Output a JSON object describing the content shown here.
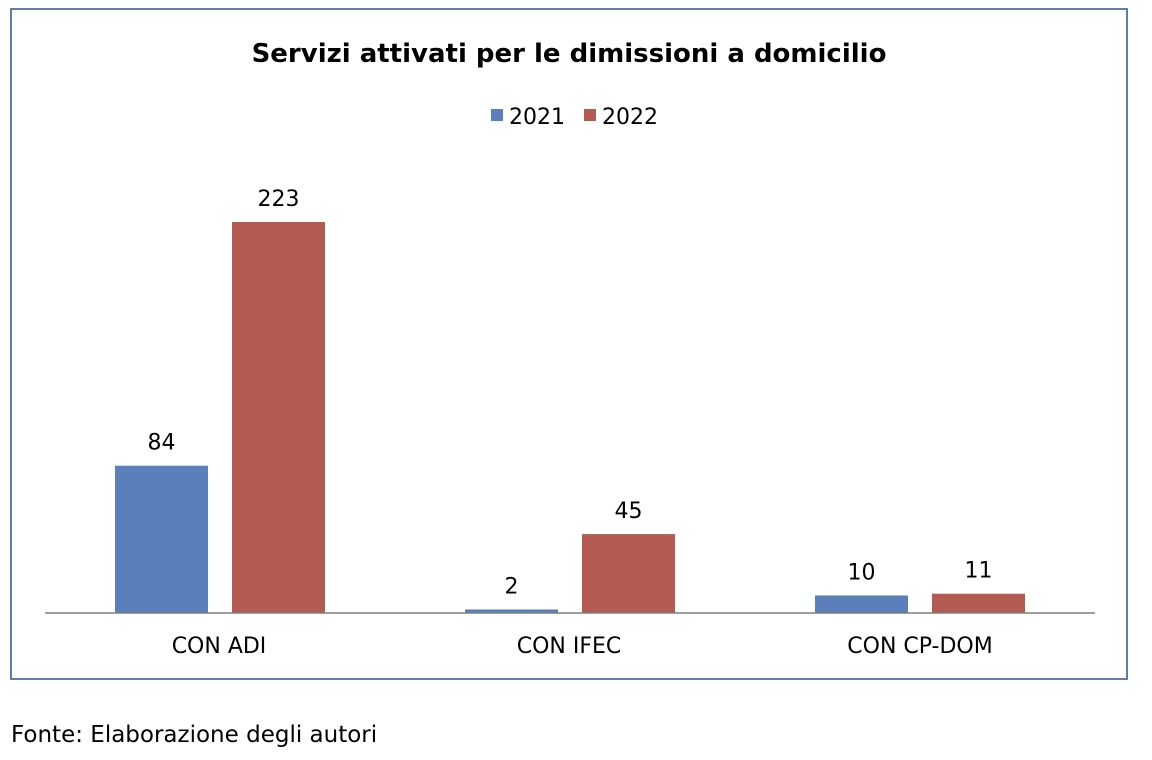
{
  "chart_data": {
    "type": "bar",
    "title": "Servizi attivati  per le dimissioni a domicilio",
    "categories": [
      "CON ADI",
      "CON IFEC",
      "CON CP-DOM"
    ],
    "series": [
      {
        "name": "2021",
        "values": [
          84,
          2,
          10
        ],
        "color": "#5b7fba"
      },
      {
        "name": "2022",
        "values": [
          223,
          45,
          11
        ],
        "color": "#b35a53"
      }
    ],
    "data_labels": true,
    "legend_position": "top-center",
    "xlabel": "",
    "ylabel": "",
    "ylim": [
      0,
      250
    ],
    "grid": false,
    "axis_color": "#7f7f7f"
  },
  "footer": {
    "source": "Fonte: Elaborazione degli autori"
  }
}
